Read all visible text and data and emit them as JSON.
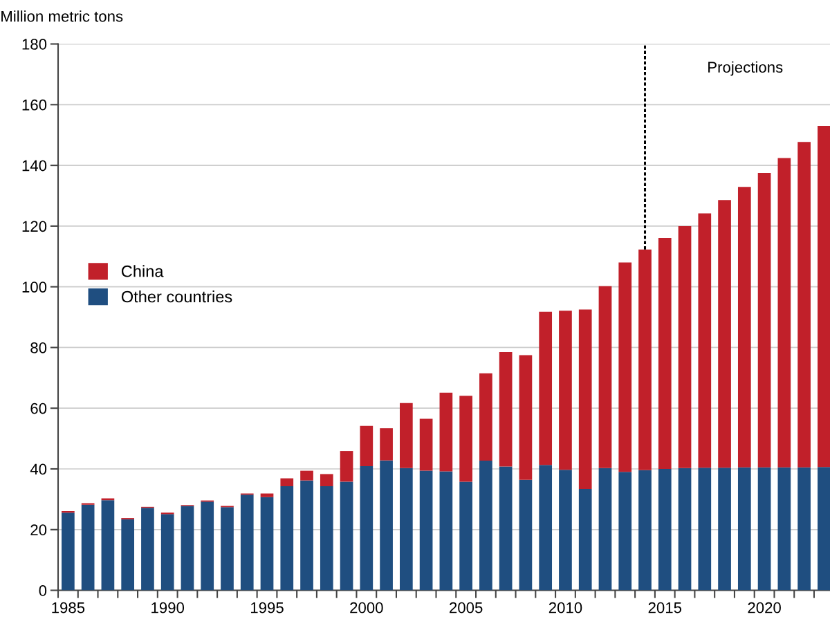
{
  "chart_data": {
    "type": "bar",
    "stacked": true,
    "ylabel": "Million metric tons",
    "x": [
      1985,
      1986,
      1987,
      1988,
      1989,
      1990,
      1991,
      1992,
      1993,
      1994,
      1995,
      1996,
      1997,
      1998,
      1999,
      2000,
      2001,
      2002,
      2003,
      2004,
      2005,
      2006,
      2007,
      2008,
      2009,
      2010,
      2011,
      2012,
      2013,
      2014,
      2015,
      2016,
      2017,
      2018,
      2019,
      2020,
      2021,
      2022,
      2023
    ],
    "series": [
      {
        "name": "Other countries",
        "color": "#1f4e80",
        "values": [
          25.6,
          28.2,
          29.7,
          23.4,
          27.2,
          25.1,
          27.8,
          29.2,
          27.4,
          31.5,
          30.7,
          34.3,
          36.2,
          34.3,
          35.8,
          40.9,
          42.8,
          40.3,
          39.4,
          39.2,
          35.8,
          42.7,
          40.8,
          36.4,
          41.3,
          39.7,
          33.4,
          40.3,
          39.0,
          39.6,
          40.0,
          40.3,
          40.4,
          40.4,
          40.5,
          40.5,
          40.5,
          40.5,
          40.6
        ]
      },
      {
        "name": "China",
        "color": "#c1202a",
        "values": [
          0.5,
          0.5,
          0.6,
          0.4,
          0.3,
          0.5,
          0.3,
          0.4,
          0.4,
          0.4,
          1.2,
          2.6,
          3.2,
          4.0,
          10.1,
          13.3,
          10.6,
          21.4,
          17.1,
          25.9,
          28.3,
          28.8,
          37.7,
          41.1,
          50.5,
          52.4,
          59.1,
          59.9,
          69.0,
          72.7,
          76.1,
          79.7,
          83.8,
          88.2,
          92.4,
          97.0,
          101.9,
          107.2,
          112.4
        ]
      }
    ],
    "xlim": [
      1984.5,
      2023.3
    ],
    "xticks": [
      1985,
      1990,
      1995,
      2000,
      2005,
      2010,
      2015,
      2020,
      {
        "value": 1984.5,
        "label": null
      },
      {
        "value": 1985.5,
        "label": null
      },
      {
        "value": 1986.5,
        "label": null
      },
      {
        "value": 1987.5,
        "label": null
      },
      {
        "value": 1988.5,
        "label": null
      },
      {
        "value": 1989.5,
        "label": null
      },
      {
        "value": 1990.5,
        "label": null
      },
      {
        "value": 1991.5,
        "label": null
      },
      {
        "value": 1992.5,
        "label": null
      },
      {
        "value": 1993.5,
        "label": null
      },
      {
        "value": 1994.5,
        "label": null
      },
      {
        "value": 1995.5,
        "label": null
      },
      {
        "value": 1996.5,
        "label": null
      },
      {
        "value": 1997.5,
        "label": null
      },
      {
        "value": 1998.5,
        "label": null
      },
      {
        "value": 1999.5,
        "label": null
      },
      {
        "value": 2000.5,
        "label": null
      },
      {
        "value": 2001.5,
        "label": null
      },
      {
        "value": 2002.5,
        "label": null
      },
      {
        "value": 2003.5,
        "label": null
      },
      {
        "value": 2004.5,
        "label": null
      },
      {
        "value": 2005.5,
        "label": null
      },
      {
        "value": 2006.5,
        "label": null
      },
      {
        "value": 2007.5,
        "label": null
      },
      {
        "value": 2008.5,
        "label": null
      },
      {
        "value": 2009.5,
        "label": null
      },
      {
        "value": 2010.5,
        "label": null
      },
      {
        "value": 2011.5,
        "label": null
      },
      {
        "value": 2012.5,
        "label": null
      },
      {
        "value": 2013.5,
        "label": null
      },
      {
        "value": 2014.5,
        "label": null
      },
      {
        "value": 2015.5,
        "label": null
      },
      {
        "value": 2016.5,
        "label": null
      },
      {
        "value": 2017.5,
        "label": null
      },
      {
        "value": 2018.5,
        "label": null
      },
      {
        "value": 2019.5,
        "label": null
      },
      {
        "value": 2020.5,
        "label": null
      },
      {
        "value": 2021.5,
        "label": null
      },
      {
        "value": 2022.5,
        "label": null
      }
    ],
    "ylim": [
      0,
      180
    ],
    "yticks": [
      0,
      20,
      40,
      60,
      80,
      100,
      120,
      140,
      160,
      180
    ],
    "grid": "y",
    "legend": "center left",
    "annotations": [
      "Projections"
    ],
    "ref_lines": [
      {
        "axis": "x",
        "value": 2014,
        "color": "#000000",
        "line_style": "dotted"
      }
    ]
  }
}
